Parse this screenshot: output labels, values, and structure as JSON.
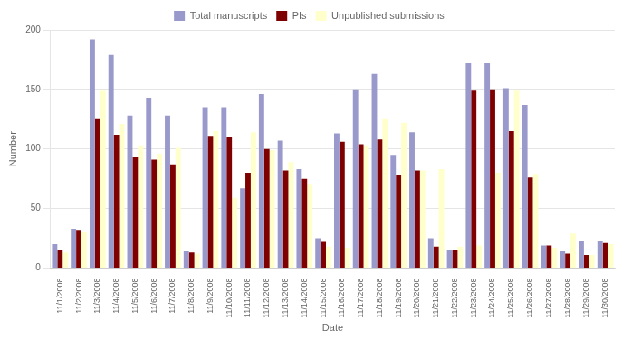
{
  "chart_data": {
    "type": "bar",
    "categories": [
      "11/1/2008",
      "11/2/2008",
      "11/3/2008",
      "11/4/2008",
      "11/5/2008",
      "11/6/2008",
      "11/7/2008",
      "11/8/2008",
      "11/9/2008",
      "11/10/2008",
      "11/11/2008",
      "11/12/2008",
      "11/13/2008",
      "11/14/2008",
      "11/15/2008",
      "11/16/2008",
      "11/17/2008",
      "11/18/2008",
      "11/19/2008",
      "11/20/2008",
      "11/21/2008",
      "11/22/2008",
      "11/23/2008",
      "11/24/2008",
      "11/25/2008",
      "11/26/2008",
      "11/27/2008",
      "11/28/2008",
      "11/29/2008",
      "11/30/2008"
    ],
    "series": [
      {
        "name": "Total manuscripts",
        "color": "#9999cc",
        "values": [
          20,
          33,
          192,
          179,
          128,
          143,
          128,
          14,
          135,
          135,
          67,
          146,
          107,
          83,
          25,
          113,
          150,
          163,
          95,
          114,
          25,
          15,
          172,
          172,
          151,
          137,
          19,
          14,
          23,
          23
        ]
      },
      {
        "name": "PIs",
        "color": "#7f0000",
        "values": [
          15,
          32,
          125,
          112,
          93,
          91,
          87,
          13,
          111,
          110,
          80,
          100,
          82,
          75,
          22,
          106,
          104,
          108,
          78,
          82,
          18,
          15,
          149,
          150,
          115,
          76,
          19,
          12,
          11,
          21
        ]
      },
      {
        "name": "Unpublished submissions",
        "color": "#ffffcc",
        "values": [
          13,
          30,
          149,
          121,
          103,
          96,
          101,
          12,
          115,
          59,
          114,
          99,
          89,
          70,
          18,
          17,
          103,
          125,
          122,
          82,
          83,
          18,
          19,
          80,
          149,
          79,
          17,
          29,
          11,
          20
        ]
      }
    ],
    "xlabel": "Date",
    "ylabel": "Number",
    "ylim": [
      0,
      200
    ],
    "yticks": [
      0,
      50,
      100,
      150,
      200
    ],
    "grid": true,
    "legend": "top"
  }
}
